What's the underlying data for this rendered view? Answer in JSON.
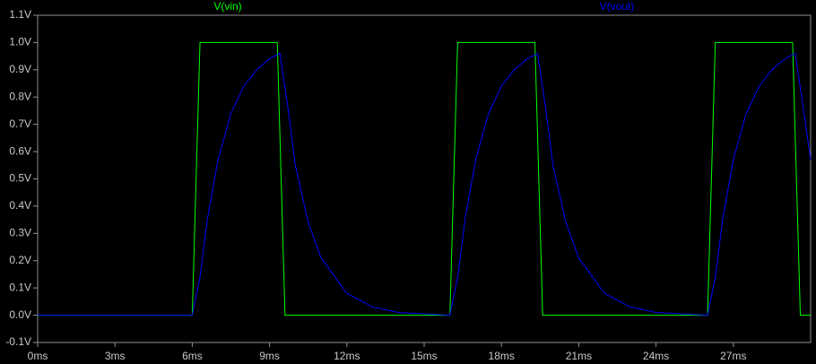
{
  "chart_data": {
    "type": "line",
    "series": [
      {
        "name": "V(vin)",
        "color": "#00ff00",
        "x": [
          0,
          6,
          6.3,
          9.3,
          9.6,
          16,
          16.3,
          19.3,
          19.6,
          26,
          26.3,
          29.3,
          29.6,
          30
        ],
        "values": [
          0,
          0,
          1,
          1,
          0,
          0,
          1,
          1,
          0,
          0,
          1,
          1,
          0,
          0
        ]
      },
      {
        "name": "V(vout)",
        "color": "#0000ff",
        "x": [
          0,
          6,
          6.3,
          6.6,
          7,
          7.5,
          8,
          8.5,
          9,
          9.4,
          9.7,
          10,
          10.5,
          11,
          12,
          13,
          14,
          16,
          16.3,
          16.6,
          17,
          17.5,
          18,
          18.5,
          19,
          19.4,
          19.7,
          20,
          20.5,
          21,
          22,
          23,
          24,
          26,
          26.3,
          26.6,
          27,
          27.5,
          28,
          28.5,
          29,
          29.4,
          29.7,
          30
        ],
        "values": [
          0,
          0,
          0.14,
          0.36,
          0.57,
          0.74,
          0.84,
          0.9,
          0.94,
          0.96,
          0.77,
          0.55,
          0.34,
          0.21,
          0.08,
          0.03,
          0.01,
          0,
          0.14,
          0.36,
          0.57,
          0.74,
          0.84,
          0.9,
          0.94,
          0.96,
          0.77,
          0.55,
          0.34,
          0.21,
          0.08,
          0.03,
          0.01,
          0,
          0.14,
          0.36,
          0.57,
          0.74,
          0.84,
          0.9,
          0.94,
          0.96,
          0.77,
          0.57
        ]
      }
    ],
    "xlim": [
      0,
      30
    ],
    "xticks": [
      {
        "value": 0,
        "label": "0ms"
      },
      {
        "value": 3,
        "label": "3ms"
      },
      {
        "value": 6,
        "label": "6ms"
      },
      {
        "value": 9,
        "label": "9ms"
      },
      {
        "value": 12,
        "label": "12ms"
      },
      {
        "value": 15,
        "label": "15ms"
      },
      {
        "value": 18,
        "label": "18ms"
      },
      {
        "value": 21,
        "label": "21ms"
      },
      {
        "value": 24,
        "label": "24ms"
      },
      {
        "value": 27,
        "label": "27ms"
      }
    ],
    "ylim": [
      -0.1,
      1.1
    ],
    "yticks": [
      {
        "value": -0.1,
        "label": "-0.1V"
      },
      {
        "value": 0,
        "label": "0.0V"
      },
      {
        "value": 0.1,
        "label": "0.1V"
      },
      {
        "value": 0.2,
        "label": "0.2V"
      },
      {
        "value": 0.3,
        "label": "0.3V"
      },
      {
        "value": 0.4,
        "label": "0.4V"
      },
      {
        "value": 0.5,
        "label": "0.5V"
      },
      {
        "value": 0.6,
        "label": "0.6V"
      },
      {
        "value": 0.7,
        "label": "0.7V"
      },
      {
        "value": 0.8,
        "label": "0.8V"
      },
      {
        "value": 0.9,
        "label": "0.9V"
      },
      {
        "value": 1.0,
        "label": "1.0V"
      },
      {
        "value": 1.1,
        "label": "1.1V"
      }
    ],
    "grid": false
  }
}
